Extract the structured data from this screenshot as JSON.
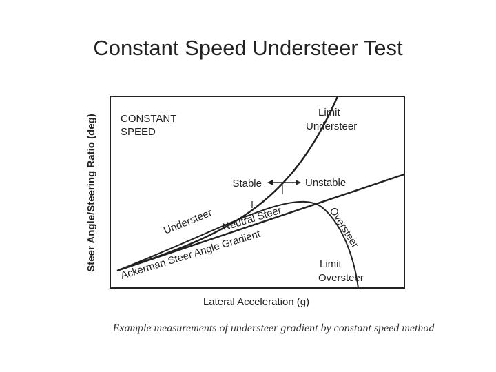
{
  "title": "Constant Speed Understeer Test",
  "diagram": {
    "y_axis_label": "Steer Angle/Steering Ratio (deg)",
    "x_axis_label": "Lateral Acceleration (g)",
    "condition": [
      "CONSTANT",
      "SPEED"
    ],
    "limit_understeer": [
      "Limit",
      "Understeer"
    ],
    "stable": "Stable",
    "unstable": "Unstable",
    "understeer": "Understeer",
    "neutral_steer": "Neutral Steer",
    "ackerman": "Ackerman Steer Angle Gradient",
    "oversteer": "Oversteer",
    "limit_oversteer": [
      "Limit",
      "Oversteer"
    ]
  },
  "caption": "Example measurements of understeer gradient by constant speed method"
}
